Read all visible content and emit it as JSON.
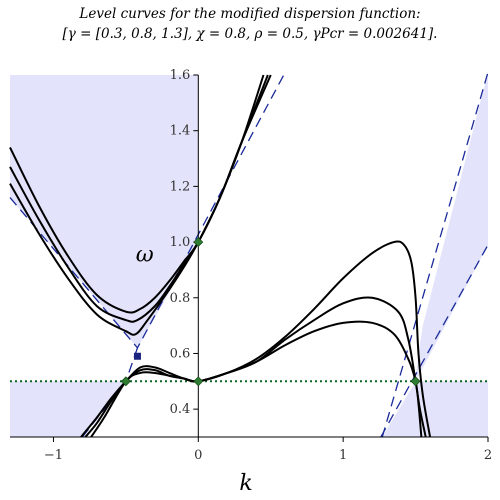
{
  "title": {
    "line1": "Level curves for the modified dispersion function:",
    "line2": "[γ = [0.3, 0.8, 1.3], χ = 0.8, ρ = 0.5, γPcr = 0.002641]."
  },
  "chart_data": {
    "type": "line",
    "title": "Level curves for the modified dispersion function: [γ = [0.3, 0.8, 1.3], χ = 0.8, ρ = 0.5, γPcr = 0.002641].",
    "xlabel": "k",
    "ylabel": "ω",
    "xlim": [
      -1.3,
      2.0
    ],
    "ylim": [
      0.3,
      1.6
    ],
    "xticks": [
      -1,
      0,
      1,
      2
    ],
    "xtick_labels": [
      "−1",
      "0",
      "1",
      "2"
    ],
    "yticks": [
      0.4,
      0.6,
      0.8,
      1.0,
      1.2,
      1.4,
      1.6
    ],
    "ytick_labels": [
      "0.4",
      "0.6",
      "0.8",
      "1.0",
      "1.2",
      "1.4",
      "1.6"
    ],
    "horizontal_reference": {
      "y": 0.5,
      "style": "dotted",
      "color": "#0b6623"
    },
    "dashed_asymptotes": [
      {
        "name": "upper-left branch",
        "x": [
          -1.3,
          -0.42,
          0.59
        ],
        "y": [
          1.16,
          0.62,
          1.6
        ]
      },
      {
        "name": "lower-left branch",
        "x": [
          -0.8,
          -0.5,
          -0.42
        ],
        "y": [
          0.3,
          0.5,
          0.62
        ]
      },
      {
        "name": "right branch a",
        "x": [
          1.27,
          2.0
        ],
        "y": [
          0.3,
          1.61
        ]
      },
      {
        "name": "right branch b",
        "x": [
          1.26,
          2.0
        ],
        "y": [
          0.3,
          0.99
        ]
      }
    ],
    "series": [
      {
        "x": [
          -1.3,
          -1.1,
          -0.9,
          -0.7,
          -0.5,
          -0.4,
          -0.3,
          -0.2,
          -0.1,
          0.0,
          0.15,
          0.3,
          0.45
        ],
        "y": [
          1.34,
          1.13,
          0.95,
          0.81,
          0.75,
          0.76,
          0.8,
          0.86,
          0.93,
          1.0,
          1.16,
          1.36,
          1.6
        ]
      },
      {
        "x": [
          -1.3,
          -1.1,
          -0.9,
          -0.7,
          -0.5,
          -0.42,
          -0.3,
          -0.2,
          -0.1,
          0.0,
          0.15,
          0.3,
          0.48
        ],
        "y": [
          1.27,
          1.08,
          0.91,
          0.77,
          0.72,
          0.72,
          0.77,
          0.84,
          0.92,
          1.0,
          1.16,
          1.36,
          1.6
        ]
      },
      {
        "x": [
          -1.3,
          -1.1,
          -0.9,
          -0.7,
          -0.5,
          -0.43,
          -0.35,
          -0.2,
          -0.1,
          0.0,
          0.15,
          0.3,
          0.5
        ],
        "y": [
          1.21,
          1.03,
          0.87,
          0.74,
          0.68,
          0.67,
          0.72,
          0.83,
          0.91,
          1.0,
          1.16,
          1.36,
          1.6
        ]
      },
      {
        "x": [
          -0.81,
          -0.7,
          -0.6,
          -0.5,
          -0.4,
          -0.3,
          -0.2,
          -0.1,
          0.0,
          0.2,
          0.4,
          0.6,
          0.8,
          1.0,
          1.2,
          1.35,
          1.42,
          1.47,
          1.5,
          1.52,
          1.55,
          1.6
        ],
        "y": [
          0.3,
          0.37,
          0.44,
          0.5,
          0.55,
          0.55,
          0.53,
          0.51,
          0.5,
          0.53,
          0.58,
          0.66,
          0.76,
          0.87,
          0.96,
          1.0,
          0.99,
          0.93,
          0.8,
          0.6,
          0.45,
          0.3
        ]
      },
      {
        "x": [
          -0.78,
          -0.7,
          -0.6,
          -0.5,
          -0.4,
          -0.3,
          -0.2,
          -0.1,
          0.0,
          0.2,
          0.4,
          0.6,
          0.8,
          1.0,
          1.2,
          1.38,
          1.45,
          1.5,
          1.53,
          1.57
        ],
        "y": [
          0.3,
          0.35,
          0.43,
          0.5,
          0.54,
          0.54,
          0.52,
          0.51,
          0.5,
          0.53,
          0.57,
          0.65,
          0.72,
          0.78,
          0.8,
          0.75,
          0.65,
          0.5,
          0.4,
          0.3
        ]
      },
      {
        "x": [
          -0.74,
          -0.65,
          -0.5,
          -0.4,
          -0.3,
          -0.2,
          -0.1,
          0.0,
          0.2,
          0.4,
          0.6,
          0.8,
          1.0,
          1.2,
          1.35,
          1.45,
          1.5,
          1.52,
          1.54
        ],
        "y": [
          0.3,
          0.37,
          0.5,
          0.53,
          0.53,
          0.52,
          0.51,
          0.5,
          0.53,
          0.57,
          0.63,
          0.68,
          0.71,
          0.71,
          0.67,
          0.58,
          0.5,
          0.42,
          0.3
        ]
      }
    ],
    "shaded_regions_color": "#e3e4fb",
    "special_points": [
      {
        "x": 0.0,
        "y": 1.0,
        "marker": "diamond",
        "color": "#2e7d32"
      },
      {
        "x": 0.0,
        "y": 0.5,
        "marker": "diamond",
        "color": "#2e7d32"
      },
      {
        "x": -0.5,
        "y": 0.5,
        "marker": "diamond",
        "color": "#2e7d32"
      },
      {
        "x": 1.5,
        "y": 0.5,
        "marker": "diamond",
        "color": "#2e7d32"
      },
      {
        "x": -0.42,
        "y": 0.59,
        "marker": "square",
        "color": "#1a237e"
      }
    ],
    "grid": false,
    "legend": "none"
  }
}
